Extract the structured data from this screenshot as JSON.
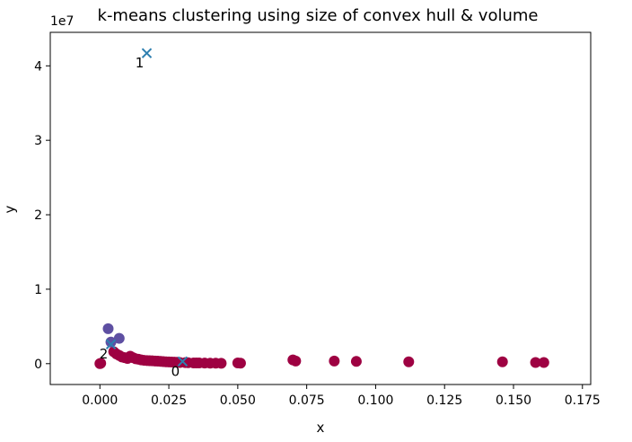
{
  "chart_data": {
    "type": "scatter",
    "title": "k-means clustering using size of convex hull & volume",
    "xlabel": "x",
    "ylabel": "y",
    "y_offset_text": "1e7",
    "xlim": [
      -0.018,
      0.178
    ],
    "ylim": [
      -2800000,
      44500000
    ],
    "xticks": [
      0.0,
      0.025,
      0.05,
      0.075,
      0.1,
      0.125,
      0.15,
      0.175
    ],
    "xtick_labels": [
      "0.000",
      "0.025",
      "0.050",
      "0.075",
      "0.100",
      "0.125",
      "0.150",
      "0.175"
    ],
    "yticks": [
      0,
      10000000,
      20000000,
      30000000,
      40000000
    ],
    "ytick_labels": [
      "0",
      "1",
      "2",
      "3",
      "4"
    ],
    "grid": false,
    "series": [
      {
        "color": "#9e0142",
        "points": [
          [
            0.0,
            0
          ],
          [
            0.0003,
            50000
          ],
          [
            0.005,
            1600000
          ],
          [
            0.006,
            1300000
          ],
          [
            0.007,
            1100000
          ],
          [
            0.008,
            900000
          ],
          [
            0.009,
            800000
          ],
          [
            0.01,
            700000
          ],
          [
            0.011,
            1000000
          ],
          [
            0.012,
            800000
          ],
          [
            0.013,
            650000
          ],
          [
            0.014,
            600000
          ],
          [
            0.015,
            500000
          ],
          [
            0.016,
            450000
          ],
          [
            0.017,
            420000
          ],
          [
            0.018,
            400000
          ],
          [
            0.019,
            380000
          ],
          [
            0.02,
            350000
          ],
          [
            0.021,
            330000
          ],
          [
            0.022,
            300000
          ],
          [
            0.023,
            280000
          ],
          [
            0.024,
            250000
          ],
          [
            0.025,
            230000
          ],
          [
            0.026,
            210000
          ],
          [
            0.027,
            200000
          ],
          [
            0.028,
            180000
          ],
          [
            0.029,
            160000
          ],
          [
            0.031,
            140000
          ],
          [
            0.032,
            120000
          ],
          [
            0.034,
            100000
          ],
          [
            0.035,
            100000
          ],
          [
            0.036,
            90000
          ],
          [
            0.038,
            80000
          ],
          [
            0.04,
            70000
          ],
          [
            0.042,
            60000
          ],
          [
            0.044,
            50000
          ],
          [
            0.05,
            100000
          ],
          [
            0.051,
            60000
          ],
          [
            0.07,
            500000
          ],
          [
            0.071,
            350000
          ],
          [
            0.085,
            350000
          ],
          [
            0.093,
            300000
          ],
          [
            0.112,
            250000
          ],
          [
            0.146,
            250000
          ],
          [
            0.158,
            150000
          ],
          [
            0.161,
            150000
          ]
        ]
      },
      {
        "color": "#5e4fa2",
        "points": [
          [
            0.003,
            4700000
          ],
          [
            0.007,
            3400000
          ],
          [
            0.004,
            2900000
          ]
        ]
      }
    ],
    "centroids": {
      "color": "#2e7fb0",
      "points": [
        [
          0.03,
          300000
        ],
        [
          0.017,
          41700000
        ],
        [
          0.004,
          2600000
        ]
      ],
      "labels": [
        "0",
        "1",
        "2"
      ]
    }
  }
}
